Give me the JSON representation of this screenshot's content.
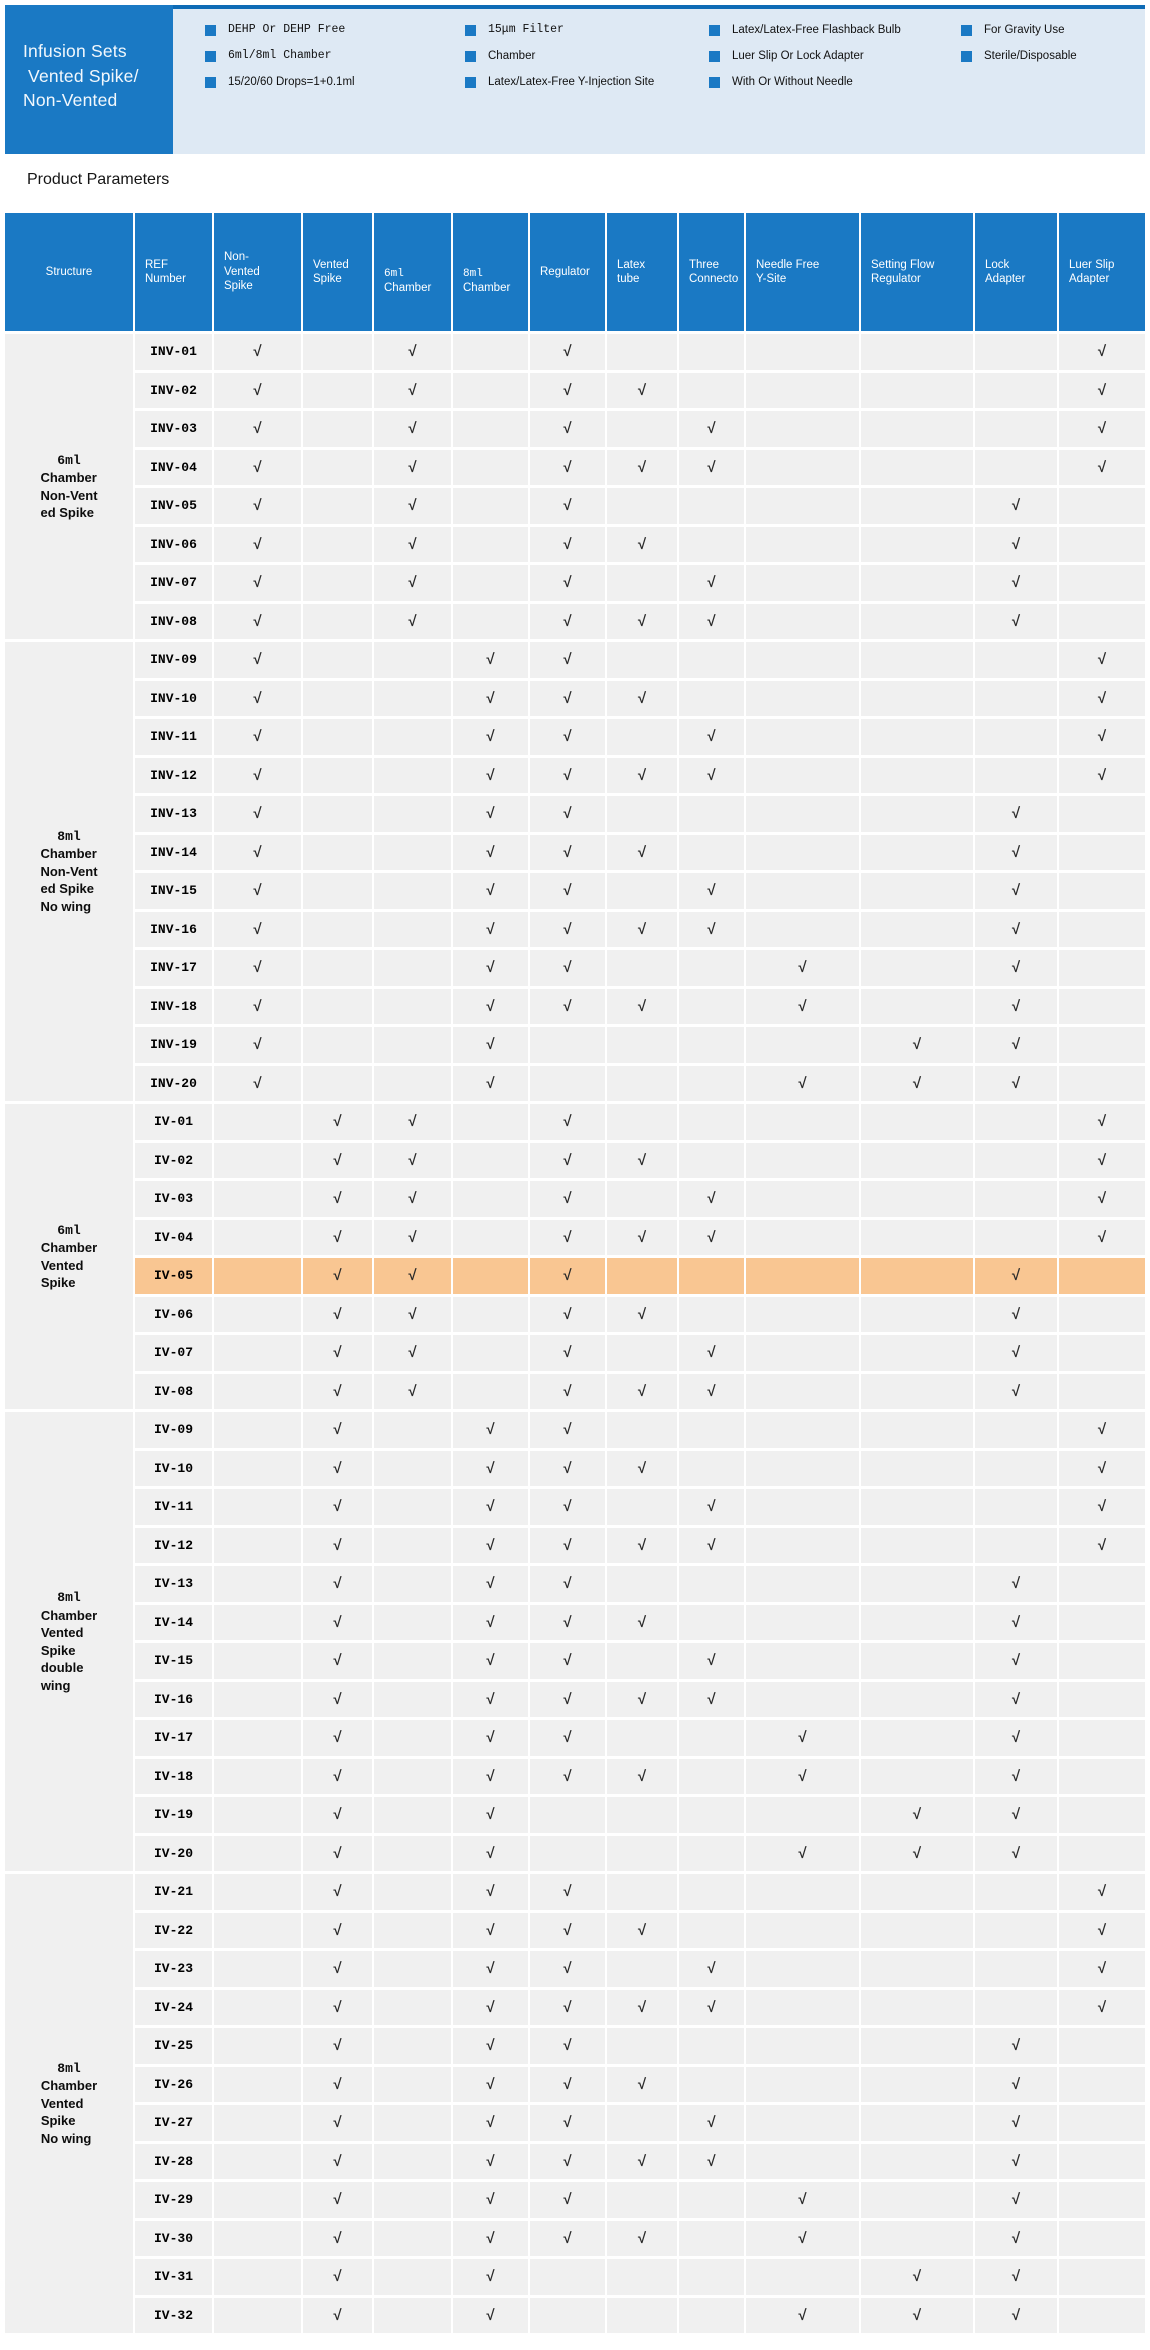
{
  "colors": {
    "accent_blue": "#1a79c4",
    "panel_blue": "#dee9f4",
    "panel_top_border": "#0e6bb5",
    "row_gray": "#f0f0f0",
    "highlight_orange": "#f9c692"
  },
  "check_glyph": "√",
  "banner": {
    "title_lines": [
      "Infusion Sets",
      " Vented Spike/",
      "Non-Vented"
    ],
    "bullet_columns": [
      [
        "DEHP Or DEHP Free",
        "6ml/8ml Chamber",
        "15/20/60 Drops=1+0.1ml"
      ],
      [
        "15μm Filter",
        "Chamber",
        "Latex/Latex-Free Y-Injection Site"
      ],
      [
        "Latex/Latex-Free Flashback Bulb",
        "Luer Slip Or Lock Adapter",
        "With Or Without Needle"
      ],
      [
        "For Gravity Use",
        "Sterile/Disposable"
      ]
    ]
  },
  "section_title": "Product Parameters",
  "table": {
    "feature_order": [
      "nv",
      "v",
      "c6",
      "c8",
      "rg",
      "lx",
      "tc",
      "nf",
      "sf",
      "lk",
      "ls"
    ],
    "columns": [
      {
        "key": "structure",
        "lines": [
          "Structure"
        ]
      },
      {
        "key": "ref",
        "lines": [
          "REF",
          "Number"
        ]
      },
      {
        "key": "nv",
        "lines": [
          "Non-",
          "Vented",
          "Spike"
        ]
      },
      {
        "key": "v",
        "lines": [
          "Vented",
          "Spike"
        ]
      },
      {
        "key": "c6",
        "lines": [
          "6ml",
          "Chamber"
        ]
      },
      {
        "key": "c8",
        "lines": [
          "8ml",
          "Chamber"
        ]
      },
      {
        "key": "rg",
        "lines": [
          "Regulator"
        ]
      },
      {
        "key": "lx",
        "lines": [
          "Latex",
          "tube"
        ]
      },
      {
        "key": "tc",
        "lines": [
          "Three",
          "Connecto"
        ]
      },
      {
        "key": "nf",
        "lines": [
          "Needle Free",
          "Y-Site"
        ]
      },
      {
        "key": "sf",
        "lines": [
          "Setting Flow",
          "Regulator"
        ]
      },
      {
        "key": "lk",
        "lines": [
          "Lock",
          "Adapter"
        ]
      },
      {
        "key": "ls",
        "lines": [
          "Luer  Slip",
          "Adapter"
        ]
      }
    ],
    "groups": [
      {
        "label_lines": [
          "6ml",
          "Chamber",
          "Non-Vent",
          "ed Spike"
        ],
        "rows": [
          {
            "ref": "INV-01",
            "checks": [
              "nv",
              "c6",
              "rg",
              "ls"
            ]
          },
          {
            "ref": "INV-02",
            "checks": [
              "nv",
              "c6",
              "rg",
              "lx",
              "ls"
            ]
          },
          {
            "ref": "INV-03",
            "checks": [
              "nv",
              "c6",
              "rg",
              "tc",
              "ls"
            ]
          },
          {
            "ref": "INV-04",
            "checks": [
              "nv",
              "c6",
              "rg",
              "lx",
              "tc",
              "ls"
            ]
          },
          {
            "ref": "INV-05",
            "checks": [
              "nv",
              "c6",
              "rg",
              "lk"
            ]
          },
          {
            "ref": "INV-06",
            "checks": [
              "nv",
              "c6",
              "rg",
              "lx",
              "lk"
            ]
          },
          {
            "ref": "INV-07",
            "checks": [
              "nv",
              "c6",
              "rg",
              "tc",
              "lk"
            ]
          },
          {
            "ref": "INV-08",
            "checks": [
              "nv",
              "c6",
              "rg",
              "lx",
              "tc",
              "lk"
            ]
          }
        ]
      },
      {
        "label_lines": [
          "8ml",
          "Chamber",
          "Non-Vent",
          "ed Spike",
          "No wing"
        ],
        "rows": [
          {
            "ref": "INV-09",
            "checks": [
              "nv",
              "c8",
              "rg",
              "ls"
            ]
          },
          {
            "ref": "INV-10",
            "checks": [
              "nv",
              "c8",
              "rg",
              "lx",
              "ls"
            ]
          },
          {
            "ref": "INV-11",
            "checks": [
              "nv",
              "c8",
              "rg",
              "tc",
              "ls"
            ]
          },
          {
            "ref": "INV-12",
            "checks": [
              "nv",
              "c8",
              "rg",
              "lx",
              "tc",
              "ls"
            ]
          },
          {
            "ref": "INV-13",
            "checks": [
              "nv",
              "c8",
              "rg",
              "lk"
            ]
          },
          {
            "ref": "INV-14",
            "checks": [
              "nv",
              "c8",
              "rg",
              "lx",
              "lk"
            ]
          },
          {
            "ref": "INV-15",
            "checks": [
              "nv",
              "c8",
              "rg",
              "tc",
              "lk"
            ]
          },
          {
            "ref": "INV-16",
            "checks": [
              "nv",
              "c8",
              "rg",
              "lx",
              "tc",
              "lk"
            ]
          },
          {
            "ref": "INV-17",
            "checks": [
              "nv",
              "c8",
              "rg",
              "nf",
              "lk"
            ]
          },
          {
            "ref": "INV-18",
            "checks": [
              "nv",
              "c8",
              "rg",
              "lx",
              "nf",
              "lk"
            ]
          },
          {
            "ref": "INV-19",
            "checks": [
              "nv",
              "c8",
              "sf",
              "lk"
            ]
          },
          {
            "ref": "INV-20",
            "checks": [
              "nv",
              "c8",
              "nf",
              "sf",
              "lk"
            ]
          }
        ]
      },
      {
        "label_lines": [
          "6ml",
          "Chamber",
          "Vented",
          "Spike"
        ],
        "rows": [
          {
            "ref": "IV-01",
            "checks": [
              "v",
              "c6",
              "rg",
              "ls"
            ]
          },
          {
            "ref": "IV-02",
            "checks": [
              "v",
              "c6",
              "rg",
              "lx",
              "ls"
            ]
          },
          {
            "ref": "IV-03",
            "checks": [
              "v",
              "c6",
              "rg",
              "tc",
              "ls"
            ]
          },
          {
            "ref": "IV-04",
            "checks": [
              "v",
              "c6",
              "rg",
              "lx",
              "tc",
              "ls"
            ]
          },
          {
            "ref": "IV-05",
            "checks": [
              "v",
              "c6",
              "rg",
              "lk"
            ],
            "highlight": true
          },
          {
            "ref": "IV-06",
            "checks": [
              "v",
              "c6",
              "rg",
              "lx",
              "lk"
            ]
          },
          {
            "ref": "IV-07",
            "checks": [
              "v",
              "c6",
              "rg",
              "tc",
              "lk"
            ]
          },
          {
            "ref": "IV-08",
            "checks": [
              "v",
              "c6",
              "rg",
              "lx",
              "tc",
              "lk"
            ]
          }
        ]
      },
      {
        "label_lines": [
          "8ml",
          "Chamber",
          "Vented",
          "Spike",
          "double",
          "wing"
        ],
        "rows": [
          {
            "ref": "IV-09",
            "checks": [
              "v",
              "c8",
              "rg",
              "ls"
            ]
          },
          {
            "ref": "IV-10",
            "checks": [
              "v",
              "c8",
              "rg",
              "lx",
              "ls"
            ]
          },
          {
            "ref": "IV-11",
            "checks": [
              "v",
              "c8",
              "rg",
              "tc",
              "ls"
            ]
          },
          {
            "ref": "IV-12",
            "checks": [
              "v",
              "c8",
              "rg",
              "lx",
              "tc",
              "ls"
            ]
          },
          {
            "ref": "IV-13",
            "checks": [
              "v",
              "c8",
              "rg",
              "lk"
            ]
          },
          {
            "ref": "IV-14",
            "checks": [
              "v",
              "c8",
              "rg",
              "lx",
              "lk"
            ]
          },
          {
            "ref": "IV-15",
            "checks": [
              "v",
              "c8",
              "rg",
              "tc",
              "lk"
            ]
          },
          {
            "ref": "IV-16",
            "checks": [
              "v",
              "c8",
              "rg",
              "lx",
              "tc",
              "lk"
            ]
          },
          {
            "ref": "IV-17",
            "checks": [
              "v",
              "c8",
              "rg",
              "nf",
              "lk"
            ]
          },
          {
            "ref": "IV-18",
            "checks": [
              "v",
              "c8",
              "rg",
              "lx",
              "nf",
              "lk"
            ]
          },
          {
            "ref": "IV-19",
            "checks": [
              "v",
              "c8",
              "sf",
              "lk"
            ]
          },
          {
            "ref": "IV-20",
            "checks": [
              "v",
              "c8",
              "nf",
              "sf",
              "lk"
            ]
          }
        ]
      },
      {
        "label_lines": [
          "8ml",
          "Chamber",
          "Vented",
          "Spike",
          "No wing"
        ],
        "rows": [
          {
            "ref": "IV-21",
            "checks": [
              "v",
              "c8",
              "rg",
              "ls"
            ]
          },
          {
            "ref": "IV-22",
            "checks": [
              "v",
              "c8",
              "rg",
              "lx",
              "ls"
            ]
          },
          {
            "ref": "IV-23",
            "checks": [
              "v",
              "c8",
              "rg",
              "tc",
              "ls"
            ]
          },
          {
            "ref": "IV-24",
            "checks": [
              "v",
              "c8",
              "rg",
              "lx",
              "tc",
              "ls"
            ]
          },
          {
            "ref": "IV-25",
            "checks": [
              "v",
              "c8",
              "rg",
              "lk"
            ]
          },
          {
            "ref": "IV-26",
            "checks": [
              "v",
              "c8",
              "rg",
              "lx",
              "lk"
            ]
          },
          {
            "ref": "IV-27",
            "checks": [
              "v",
              "c8",
              "rg",
              "tc",
              "lk"
            ]
          },
          {
            "ref": "IV-28",
            "checks": [
              "v",
              "c8",
              "rg",
              "lx",
              "tc",
              "lk"
            ]
          },
          {
            "ref": "IV-29",
            "checks": [
              "v",
              "c8",
              "rg",
              "nf",
              "lk"
            ]
          },
          {
            "ref": "IV-30",
            "checks": [
              "v",
              "c8",
              "rg",
              "lx",
              "nf",
              "lk"
            ]
          },
          {
            "ref": "IV-31",
            "checks": [
              "v",
              "c8",
              "sf",
              "lk"
            ]
          },
          {
            "ref": "IV-32",
            "checks": [
              "v",
              "c8",
              "nf",
              "sf",
              "lk"
            ]
          }
        ]
      }
    ]
  }
}
